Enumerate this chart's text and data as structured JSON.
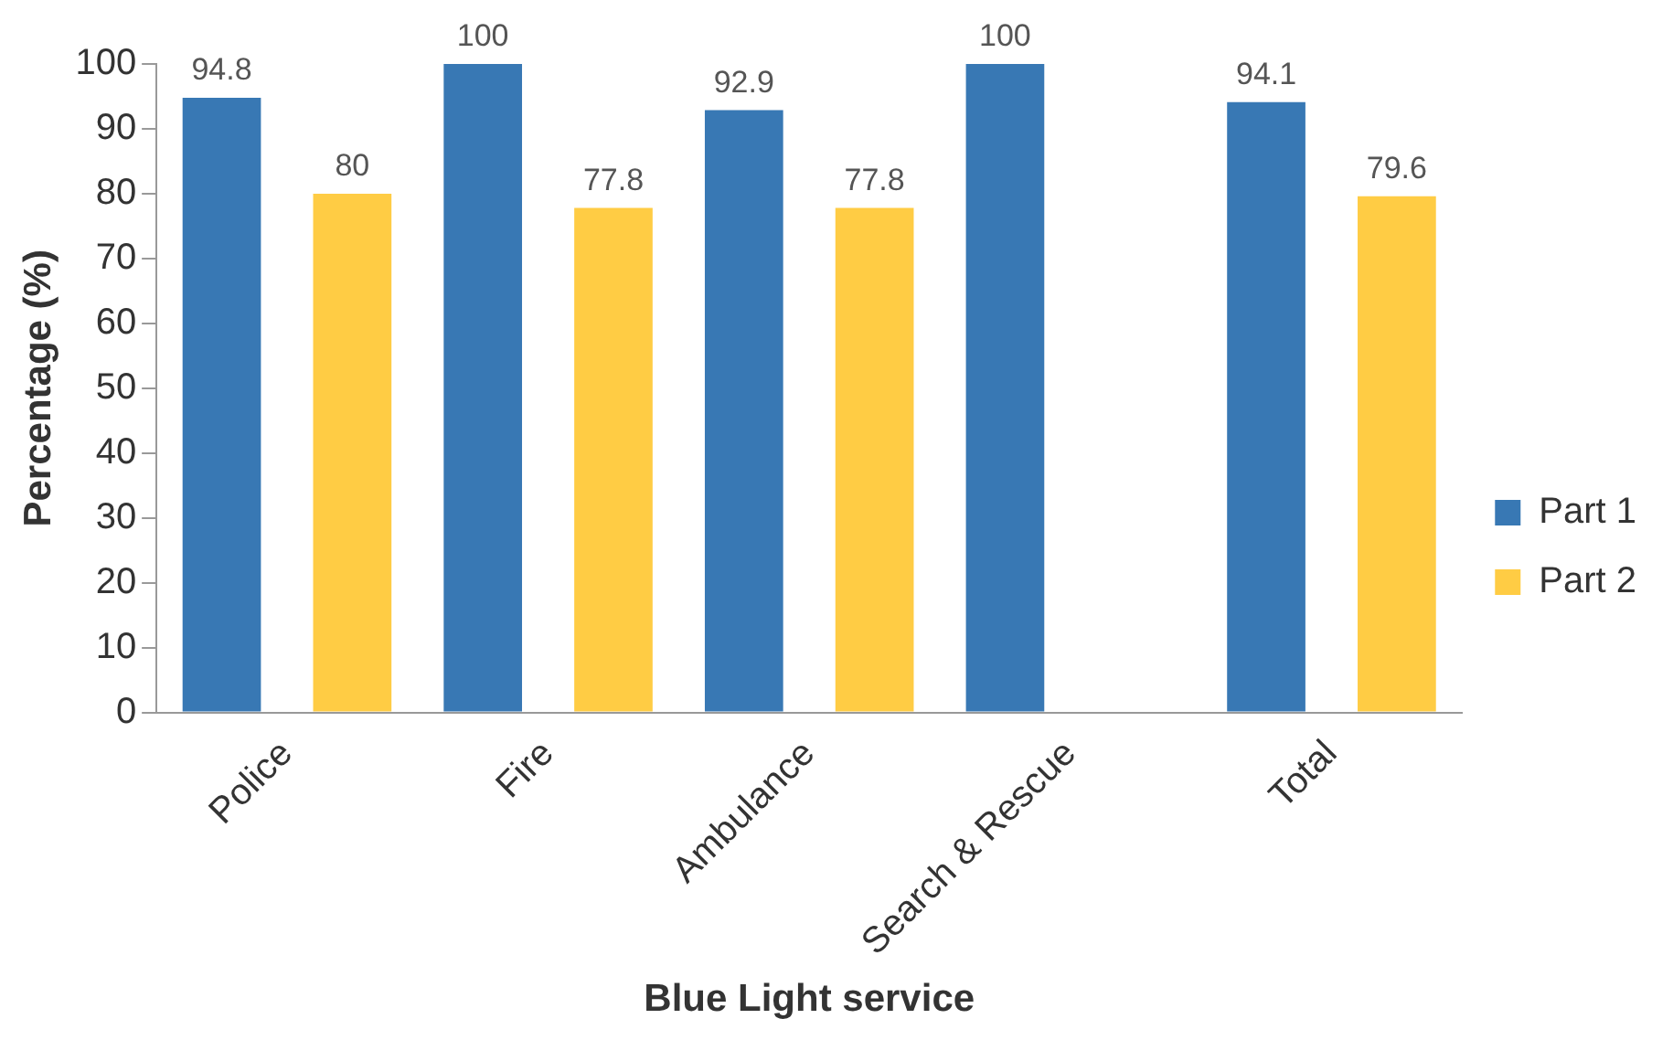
{
  "chart_data": {
    "type": "bar",
    "xlabel": "Blue Light service",
    "ylabel": "Percentage (%)",
    "categories": [
      "Police",
      "Fire",
      "Ambulance",
      "Search & Rescue",
      "Total"
    ],
    "series": [
      {
        "name": "Part 1",
        "color": "#3878b4",
        "values": [
          94.8,
          100,
          92.9,
          100,
          94.1
        ]
      },
      {
        "name": "Part 2",
        "color": "#ffcc44",
        "values": [
          80,
          77.8,
          77.8,
          null,
          79.6
        ]
      }
    ],
    "ylim": [
      0,
      100
    ],
    "yticks": [
      0,
      10,
      20,
      30,
      40,
      50,
      60,
      70,
      80,
      90,
      100
    ],
    "grid": false,
    "legend": "right",
    "data_labels": true
  }
}
